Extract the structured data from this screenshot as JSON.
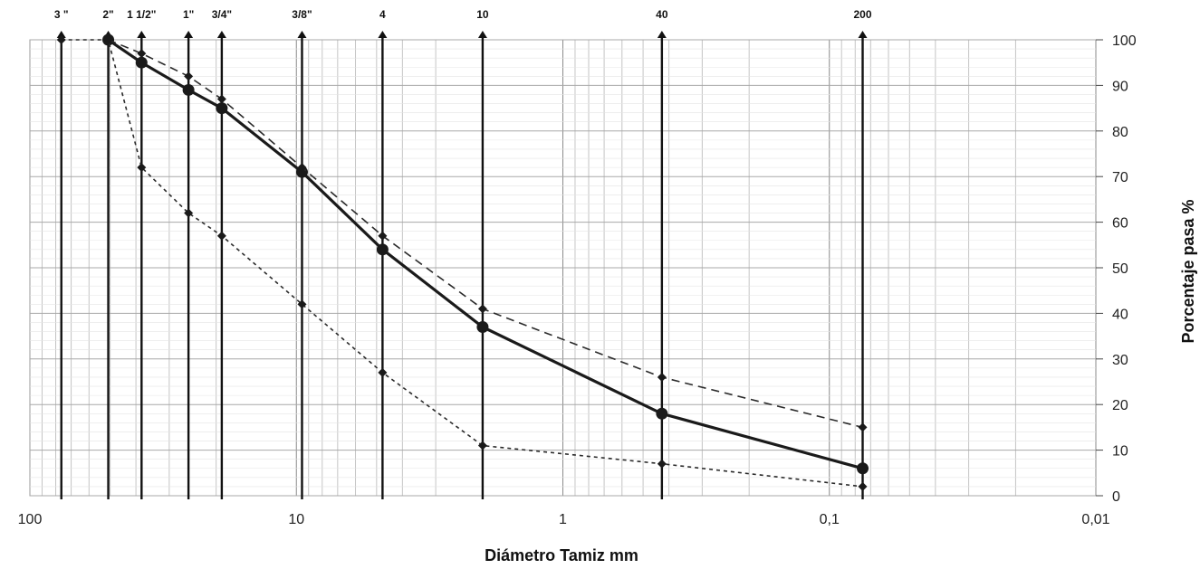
{
  "chart_data": {
    "type": "line",
    "title": "",
    "xlabel": "Diámetro Tamiz mm",
    "ylabel": "Porcentaje pasa %",
    "x_scale": "log",
    "x_reversed": true,
    "xlim": [
      100,
      0.01
    ],
    "ylim": [
      0,
      100
    ],
    "x_tick_labels": [
      "100",
      "10",
      "1",
      "0,1",
      "0,01"
    ],
    "x_tick_values": [
      100,
      10,
      1,
      0.1,
      0.01
    ],
    "y_ticks": [
      0,
      10,
      20,
      30,
      40,
      50,
      60,
      70,
      80,
      90,
      100
    ],
    "y_axis_side": "right",
    "grid": true,
    "sieves": [
      {
        "label": "3 \"",
        "mm": 76.2
      },
      {
        "label": "2\"",
        "mm": 50.8
      },
      {
        "label": "1 1/2\"",
        "mm": 38.1
      },
      {
        "label": "1\"",
        "mm": 25.4
      },
      {
        "label": "3/4\"",
        "mm": 19.05
      },
      {
        "label": "3/8\"",
        "mm": 9.525
      },
      {
        "label": "4",
        "mm": 4.75
      },
      {
        "label": "10",
        "mm": 2.0
      },
      {
        "label": "40",
        "mm": 0.425
      },
      {
        "label": "200",
        "mm": 0.075
      }
    ],
    "series": [
      {
        "style": "solid",
        "color": "#1a1a1a",
        "x": [
          50.8,
          38.1,
          25.4,
          19.05,
          9.525,
          4.75,
          2.0,
          0.425,
          0.075
        ],
        "y": [
          100,
          95,
          89,
          85,
          71,
          54,
          37,
          18,
          6
        ]
      },
      {
        "style": "dashed",
        "color": "#2a2a2a",
        "x": [
          50.8,
          38.1,
          25.4,
          19.05,
          9.525,
          4.75,
          2.0,
          0.425,
          0.075
        ],
        "y": [
          100,
          97,
          92,
          87,
          72,
          57,
          41,
          26,
          15
        ]
      },
      {
        "style": "dotted",
        "color": "#2a2a2a",
        "x": [
          76.2,
          50.8,
          38.1,
          25.4,
          19.05,
          9.525,
          4.75,
          2.0,
          0.425,
          0.075
        ],
        "y": [
          100,
          100,
          72,
          62,
          57,
          42,
          27,
          11,
          7,
          2
        ]
      }
    ]
  }
}
